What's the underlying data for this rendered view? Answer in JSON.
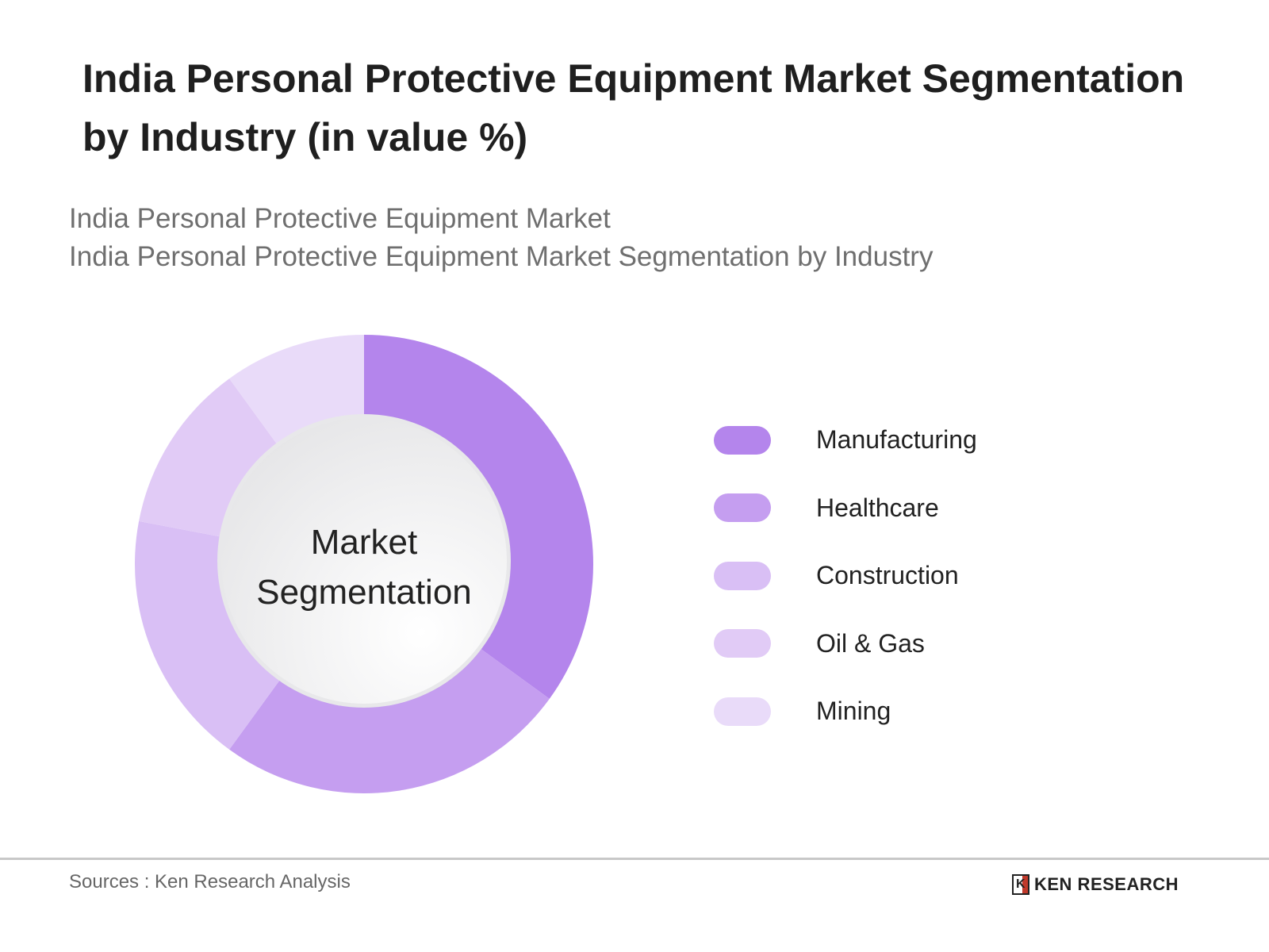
{
  "chart_data": {
    "type": "pie",
    "variant": "donut",
    "title": "India Personal Protective Equipment Market Segmentation by Industry (in value %)",
    "subtitle_lines": [
      "India Personal Protective Equipment Market",
      "India Personal Protective Equipment Market Segmentation by Industry"
    ],
    "center_label_lines": [
      "Market",
      "Segmentation"
    ],
    "categories": [
      "Manufacturing",
      "Healthcare",
      "Construction",
      "Oil & Gas",
      "Mining"
    ],
    "values": [
      35,
      25,
      18,
      12,
      10
    ],
    "unit": "%",
    "colors": [
      "#b485ec",
      "#c59ef0",
      "#d9bff5",
      "#e1cbf6",
      "#e9dbf9"
    ],
    "start_angle": "top",
    "direction": "clockwise",
    "legend_placement": "right"
  },
  "footer": {
    "source": "Sources : Ken Research Analysis",
    "logo_text": "KEN RESEARCH"
  }
}
